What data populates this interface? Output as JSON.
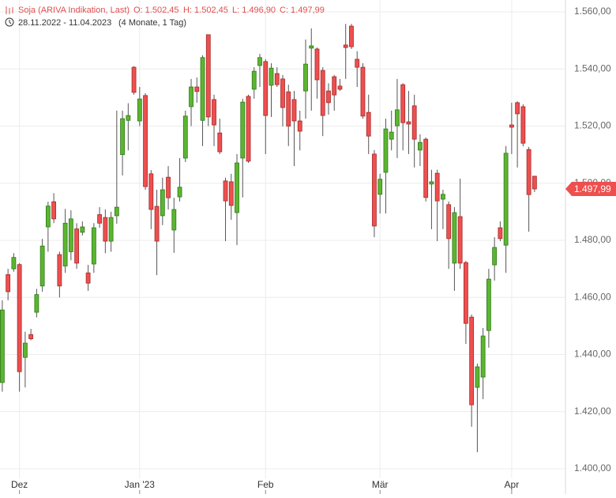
{
  "chart_data": {
    "type": "candlestick",
    "title": "Soja (ARIVA Indikation, Last)",
    "ohlc_text": [
      "O: 1.502,45",
      "H: 1.502,45",
      "L: 1.496,90",
      "C: 1.497,99"
    ],
    "period": "28.11.2022 - 11.04.2023",
    "period_length": "(4 Monate, 1 Tag)",
    "open": [
      1430.2,
      1468,
      1470,
      1471.5,
      1439,
      1447,
      1454.8,
      1464,
      1484.7,
      1493.5,
      1475,
      1471,
      1476,
      1484,
      1482.8,
      1468.6,
      1471.7,
      1489,
      1488,
      1479.7,
      1488.6,
      1510,
      1522,
      1540.6,
      1521.8,
      1530.7,
      1503.3,
      1491.9,
      1488.6,
      1502.1,
      1483.6,
      1495.2,
      1508.8,
      1526.8,
      1533.7,
      1522,
      1552,
      1529.3,
      1517.6,
      1500.8,
      1500.5,
      1489.7,
      1508.8,
      1530.4,
      1532.9,
      1541.2,
      1542.6,
      1534.3,
      1538.4,
      1536.5,
      1532,
      1529.3,
      1521.8,
      1532.3,
      1547.3,
      1547,
      1539.5,
      1532.3,
      1537.3,
      1534,
      1548.4,
      1555,
      1543.4,
      1540.6,
      1524.8,
      1510.2,
      1496.1,
      1503.8,
      1515.4,
      1520.1,
      1534.5,
      1521.5,
      1527.1,
      1511.6,
      1515.4,
      1499.7,
      1503.5,
      1494.4,
      1492.5,
      1472,
      1488.3,
      1472.2,
      1453.1,
      1428.5,
      1432.1,
      1448.4,
      1471.4,
      1484.4,
      1478.3,
      1520.4,
      1528.2,
      1526.8,
      1511.8,
      1502.45
    ],
    "high": [
      1459,
      1470,
      1475.5,
      1472,
      1448,
      1449,
      1463,
      1480.5,
      1493.5,
      1496.5,
      1476,
      1491,
      1490.5,
      1486,
      1486.6,
      1471.4,
      1486,
      1491.6,
      1490.8,
      1490,
      1525.4,
      1525.4,
      1528,
      1541,
      1533.7,
      1531.5,
      1504.6,
      1497.7,
      1501.9,
      1506,
      1494.9,
      1508.8,
      1525.4,
      1536.5,
      1537,
      1544.8,
      1552,
      1531,
      1522.6,
      1501.9,
      1503.3,
      1510.2,
      1529.6,
      1531,
      1540.6,
      1545.3,
      1543.4,
      1542,
      1540.6,
      1537.9,
      1534.5,
      1532.3,
      1525.4,
      1550.3,
      1554.2,
      1547.5,
      1540.6,
      1535,
      1537.9,
      1536.5,
      1555.8,
      1555.8,
      1546.2,
      1542,
      1531,
      1511.6,
      1503.3,
      1522.6,
      1525.4,
      1536.5,
      1535,
      1532.3,
      1531,
      1517.1,
      1516,
      1504.7,
      1504.7,
      1497.7,
      1493.6,
      1491.6,
      1501.6,
      1472.8,
      1454,
      1436.8,
      1449.3,
      1470,
      1481.1,
      1486.6,
      1513,
      1528.2,
      1528.7,
      1527.6,
      1512.7,
      1502.45
    ],
    "low": [
      1427,
      1459,
      1469,
      1427,
      1428.5,
      1445,
      1453,
      1462,
      1476,
      1486,
      1460,
      1468.6,
      1473,
      1470,
      1481.7,
      1462.3,
      1468.6,
      1484.4,
      1475.5,
      1476,
      1485.8,
      1502.7,
      1511.5,
      1531,
      1520,
      1497.7,
      1483.9,
      1467.8,
      1485.3,
      1490.8,
      1475.6,
      1493.6,
      1507.4,
      1520,
      1528.2,
      1513,
      1520,
      1513,
      1510.2,
      1479.7,
      1487.2,
      1478.3,
      1495,
      1507.1,
      1529.6,
      1533.7,
      1510.2,
      1523.2,
      1533.7,
      1519.9,
      1513,
      1506,
      1511.5,
      1522.6,
      1525.4,
      1529.6,
      1516.5,
      1524,
      1525.4,
      1532.3,
      1536.5,
      1547,
      1533.7,
      1522.6,
      1510.2,
      1481.1,
      1489.4,
      1489.4,
      1511.5,
      1508.8,
      1511.5,
      1510.2,
      1505.5,
      1506,
      1493.6,
      1483.9,
      1479.7,
      1483.9,
      1470,
      1462.3,
      1470,
      1443.7,
      1414.7,
      1405.8,
      1424.4,
      1442.4,
      1465.9,
      1479.7,
      1468.6,
      1510.2,
      1505.5,
      1512.9,
      1483,
      1496.9
    ],
    "close": [
      1455.6,
      1462,
      1474,
      1434,
      1444,
      1445.5,
      1461,
      1478,
      1492,
      1487.5,
      1464,
      1486,
      1487.5,
      1472,
      1484.7,
      1465,
      1484.4,
      1486,
      1479.7,
      1488,
      1491.6,
      1522.6,
      1523.7,
      1531.8,
      1529.5,
      1498.8,
      1490.8,
      1479.7,
      1497.7,
      1494.9,
      1490.8,
      1498.6,
      1523.5,
      1533.7,
      1532.1,
      1544,
      1523.2,
      1520.4,
      1511,
      1493.8,
      1492.2,
      1507.1,
      1528.4,
      1507.7,
      1539.2,
      1544,
      1523.7,
      1540.3,
      1534.5,
      1526.5,
      1520,
      1521.8,
      1518.2,
      1541.7,
      1548.1,
      1536.2,
      1523.7,
      1528.2,
      1530.9,
      1532.9,
      1547.5,
      1547.8,
      1540.6,
      1523.5,
      1516.5,
      1485,
      1501.4,
      1519,
      1517.9,
      1525.7,
      1521.2,
      1520.7,
      1515.4,
      1514.3,
      1495,
      1500.5,
      1493.8,
      1496.1,
      1480.6,
      1489.7,
      1472,
      1450.9,
      1422.4,
      1435.7,
      1446.5,
      1466.4,
      1477.5,
      1480.6,
      1510.5,
      1519.6,
      1524.3,
      1514,
      1496,
      1497.99
    ],
    "up_color": "#5cb531",
    "down_color": "#ee4f4f",
    "xlim": [
      -0.4,
      98.4
    ],
    "xticks": [
      {
        "value": 3,
        "label": "Dez"
      },
      {
        "value": 24,
        "label": "Jan '23"
      },
      {
        "value": 46,
        "label": "Feb"
      },
      {
        "value": 66,
        "label": "Mär"
      },
      {
        "value": 89,
        "label": "Apr"
      }
    ],
    "ylim": [
      1400,
      1560
    ],
    "yticks": [
      {
        "value": 1400,
        "label": "1.400,00"
      },
      {
        "value": 1420,
        "label": "1.420,00"
      },
      {
        "value": 1440,
        "label": "1.440,00"
      },
      {
        "value": 1460,
        "label": "1.460,00"
      },
      {
        "value": 1480,
        "label": "1.480,00"
      },
      {
        "value": 1500,
        "label": "1.500,00"
      },
      {
        "value": 1520,
        "label": "1.520,00"
      },
      {
        "value": 1540,
        "label": "1.540,00"
      },
      {
        "value": 1560,
        "label": "1.560,00"
      }
    ],
    "last": {
      "value": 1497.99,
      "label": "1.497,99"
    },
    "grid": true
  }
}
